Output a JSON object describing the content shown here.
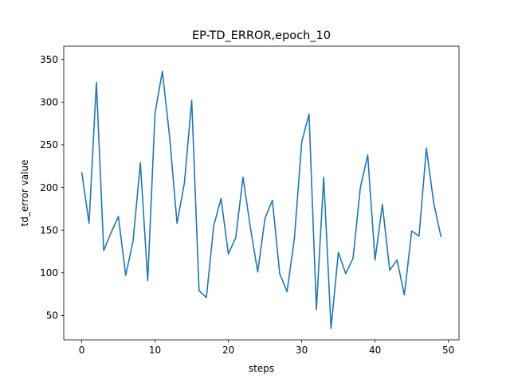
{
  "chart_data": {
    "type": "line",
    "title": "EP-TD_ERROR,epoch_10",
    "xlabel": "steps",
    "ylabel": "td_error value",
    "xlim": [
      -2.45,
      51.45
    ],
    "ylim": [
      21.5,
      365.5
    ],
    "xticks": [
      0,
      10,
      20,
      30,
      40,
      50
    ],
    "yticks": [
      50,
      100,
      150,
      200,
      250,
      300,
      350
    ],
    "grid": false,
    "line_color": "#1f77b4",
    "series": [
      {
        "x": [
          0,
          1,
          2,
          3,
          4,
          5,
          6,
          7,
          8,
          9,
          10,
          11,
          12,
          13,
          14,
          15,
          16,
          17,
          18,
          19,
          20,
          21,
          22,
          23,
          24,
          25,
          26,
          27,
          28,
          29,
          30,
          31,
          32,
          33,
          34,
          35,
          36,
          37,
          38,
          39,
          40,
          41,
          42,
          43,
          44,
          45,
          46,
          47,
          48,
          49
        ],
        "values": [
          218,
          158,
          323,
          126,
          147,
          166,
          97,
          137,
          229,
          91,
          287,
          336,
          258,
          158,
          205,
          302,
          79,
          71,
          155,
          187,
          122,
          141,
          212,
          153,
          101,
          164,
          185,
          99,
          78,
          140,
          253,
          286,
          57,
          212,
          35,
          124,
          99,
          117,
          200,
          238,
          115,
          180,
          103,
          115,
          74,
          149,
          143,
          246,
          182,
          142
        ]
      }
    ]
  }
}
